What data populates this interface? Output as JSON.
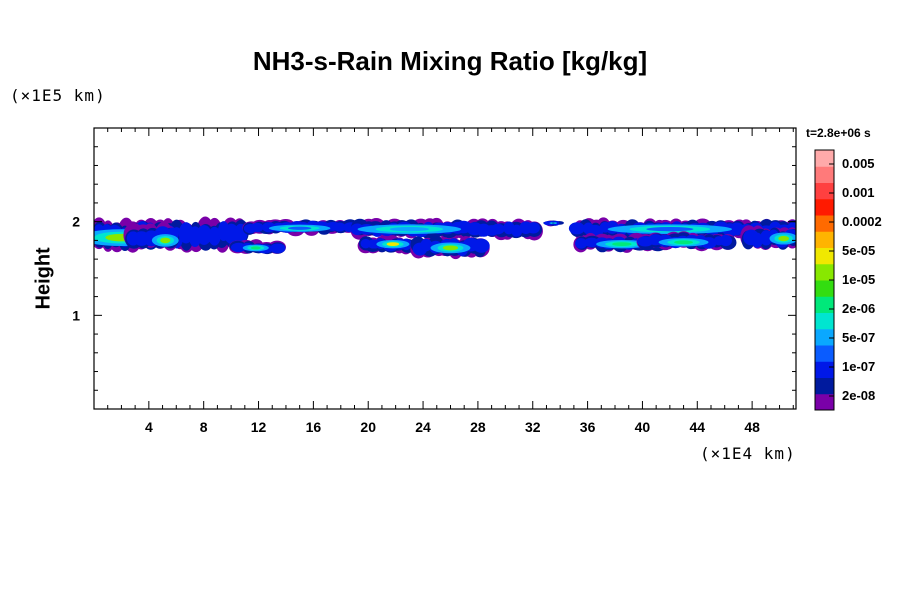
{
  "chart_data": {
    "type": "heatmap",
    "title": "NH3-s-Rain Mixing Ratio [kg/kg]",
    "ylabel": "Height",
    "xlabel": "",
    "x_unit_label": "(×1E4 km)",
    "y_unit_label": "(×1E5 km)",
    "time_label": "t=2.8e+06 s",
    "xlim": [
      0,
      51.2
    ],
    "ylim": [
      0,
      3
    ],
    "x_ticks": [
      4,
      8,
      12,
      16,
      20,
      24,
      28,
      32,
      36,
      40,
      44,
      48
    ],
    "y_ticks": [
      1,
      2
    ],
    "colorbar": {
      "labels": [
        "0.005",
        "0.001",
        "0.0002",
        "5e-05",
        "1e-05",
        "2e-06",
        "5e-07",
        "1e-07",
        "2e-08"
      ],
      "colors": [
        "#7a00a8",
        "#001a9e",
        "#0018e8",
        "#0a5cff",
        "#0aa8ff",
        "#00e5d0",
        "#00e87a",
        "#33dd10",
        "#88e800",
        "#f0e800",
        "#ffb400",
        "#ff6a00",
        "#ff1a00",
        "#ff4040",
        "#ff7a7a",
        "#ffaaaa"
      ]
    },
    "clouds": [
      {
        "x0": 0.0,
        "x1": 11.0,
        "ytop": 2.0,
        "ybot": 1.72,
        "core": "#88e800",
        "core_x": 2.0,
        "core_y": 1.83
      },
      {
        "x0": 2.5,
        "x1": 6.0,
        "ytop": 1.95,
        "ybot": 1.74,
        "core": "#88e800",
        "core_x": 5.2,
        "core_y": 1.8
      },
      {
        "x0": 10.2,
        "x1": 13.6,
        "ytop": 1.78,
        "ybot": 1.67,
        "core": "#00e87a",
        "core_x": 11.8,
        "core_y": 1.72
      },
      {
        "x0": 11.0,
        "x1": 19.0,
        "ytop": 2.0,
        "ybot": 1.88,
        "core": "#0a5cff",
        "core_x": 15.0,
        "core_y": 1.93
      },
      {
        "x0": 19.0,
        "x1": 32.5,
        "ytop": 2.0,
        "ybot": 1.84,
        "core": "#0aa8ff",
        "core_x": 23.0,
        "core_y": 1.92
      },
      {
        "x0": 19.5,
        "x1": 23.8,
        "ytop": 1.82,
        "ybot": 1.68,
        "core": "#f0e800",
        "core_x": 21.8,
        "core_y": 1.76
      },
      {
        "x0": 23.4,
        "x1": 28.6,
        "ytop": 1.82,
        "ybot": 1.64,
        "core": "#88e800",
        "core_x": 26.0,
        "core_y": 1.72
      },
      {
        "x0": 33.0,
        "x1": 34.0,
        "ytop": 2.0,
        "ybot": 1.97,
        "core": "#001a9e",
        "core_x": 33.5,
        "core_y": 1.985
      },
      {
        "x0": 35.0,
        "x1": 51.2,
        "ytop": 2.0,
        "ybot": 1.84,
        "core": "#0a5cff",
        "core_x": 42.0,
        "core_y": 1.92
      },
      {
        "x0": 35.3,
        "x1": 42.0,
        "ytop": 1.84,
        "ybot": 1.7,
        "core": "#00e87a",
        "core_x": 38.5,
        "core_y": 1.76
      },
      {
        "x0": 40.0,
        "x1": 46.5,
        "ytop": 1.86,
        "ybot": 1.72,
        "core": "#00e87a",
        "core_x": 43.0,
        "core_y": 1.78
      },
      {
        "x0": 47.5,
        "x1": 51.2,
        "ytop": 1.92,
        "ybot": 1.72,
        "core": "#88e800",
        "core_x": 50.3,
        "core_y": 1.82
      }
    ]
  }
}
